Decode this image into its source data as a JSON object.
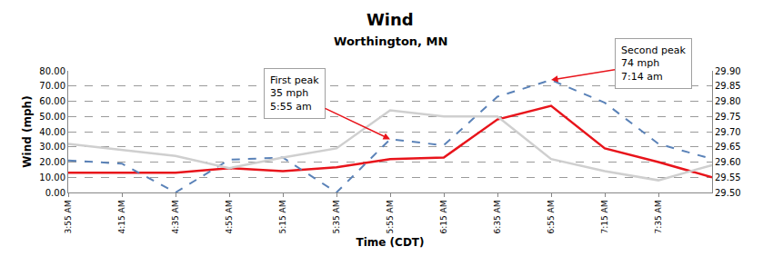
{
  "chart_data": {
    "type": "line",
    "title": "Wind",
    "subtitle": "Worthington, MN",
    "x_label": "Time (CDT)",
    "y_label": "Wind (mph)",
    "categories": [
      "3:55 AM",
      "4:15 AM",
      "4:35 AM",
      "4:55 AM",
      "5:15 AM",
      "5:35 AM",
      "5:55 AM",
      "6:15 AM",
      "6:35 AM",
      "6:55 AM",
      "7:15 AM",
      "7:35 AM",
      null
    ],
    "series": [
      {
        "color": "#e8141b",
        "line_style": "solid",
        "values": [
          13,
          13,
          13,
          16,
          14,
          16.5,
          22,
          23,
          48,
          57,
          29,
          20,
          10
        ]
      },
      {
        "color": "#5a82b8",
        "line_style": "dash",
        "values": [
          21,
          19,
          0,
          21.5,
          23,
          0,
          35,
          31,
          63,
          74,
          59,
          32,
          22
        ]
      },
      {
        "color": "#cfcfcf",
        "line_style": "solid",
        "axis": "y2",
        "values": [
          29.66,
          29.64,
          29.62,
          29.58,
          29.615,
          29.645,
          29.77,
          29.75,
          29.75,
          29.61,
          29.57,
          29.54,
          29.59
        ]
      }
    ],
    "ylim": [
      0,
      80
    ],
    "yticks": [
      {
        "value": 0,
        "label": "0.00"
      },
      {
        "value": 10,
        "label": "10.00"
      },
      {
        "value": 20,
        "label": "20.00"
      },
      {
        "value": 30,
        "label": "30.00"
      },
      {
        "value": 40,
        "label": "40.00"
      },
      {
        "value": 50,
        "label": "50.00"
      },
      {
        "value": 60,
        "label": "60.00"
      },
      {
        "value": 70,
        "label": "70.00"
      },
      {
        "value": 80,
        "label": "80.00"
      }
    ],
    "y2lim": [
      29.5,
      29.9
    ],
    "y2ticks": [
      {
        "value": 29.5,
        "label": "29.50"
      },
      29.55,
      {
        "value": 29.6,
        "label": "29.60"
      },
      29.65,
      {
        "value": 29.7,
        "label": "29.70"
      },
      29.75,
      {
        "value": 29.8,
        "label": "29.80"
      },
      29.85,
      {
        "value": 29.9,
        "label": "29.90"
      }
    ],
    "grid": true,
    "annotations": [
      {
        "lines": [
          "First peak",
          "35 mph",
          "5:55 am"
        ],
        "at": "5:55 AM",
        "y": 35
      },
      {
        "lines": [
          "Second peak",
          "74 mph",
          "7:14 am"
        ],
        "at": "6:55 AM",
        "y": 74
      }
    ]
  }
}
